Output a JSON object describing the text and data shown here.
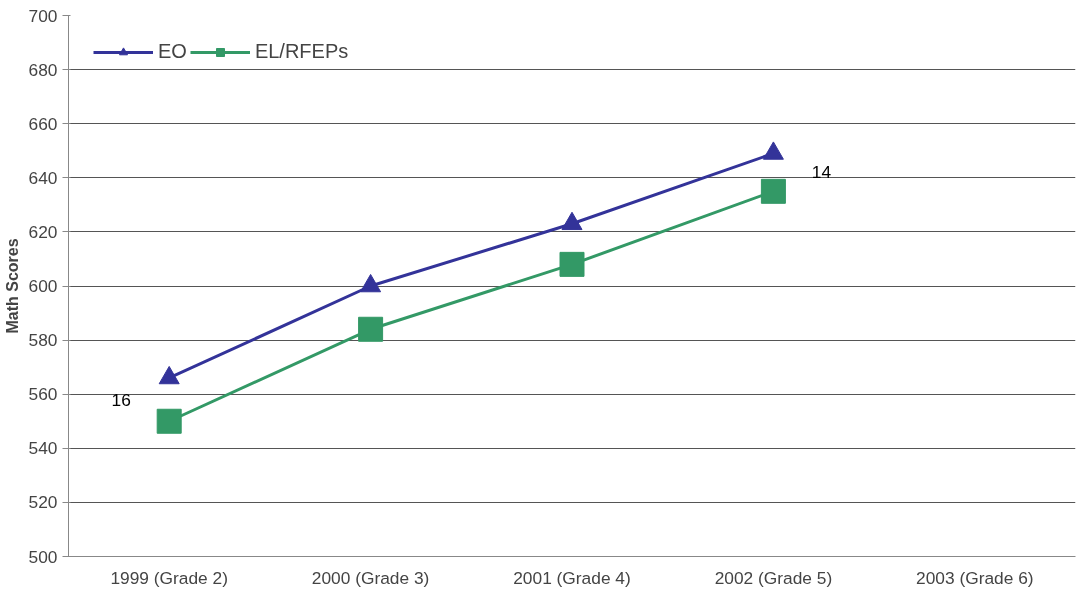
{
  "chart_data": {
    "type": "line",
    "ylabel": "Math Scores",
    "categories": [
      "1999 (Grade 2)",
      "2000 (Grade 3)",
      "2001 (Grade 4)",
      "2002 (Grade 5)",
      "2003 (Grade 6)"
    ],
    "series": [
      {
        "name": "EO",
        "color": "#333399",
        "values": [
          566,
          600,
          623,
          649,
          null
        ],
        "marker": "triangle"
      },
      {
        "name": "EL/RFEPs",
        "color": "#339966",
        "values": [
          550,
          584,
          608,
          635,
          null
        ],
        "marker": "square"
      }
    ],
    "ylim": [
      500,
      700
    ],
    "yticks": [
      500,
      520,
      540,
      560,
      580,
      600,
      620,
      640,
      660,
      680,
      700
    ],
    "grid": "y",
    "legend": "top left",
    "annotations": [
      "16",
      "14"
    ]
  }
}
